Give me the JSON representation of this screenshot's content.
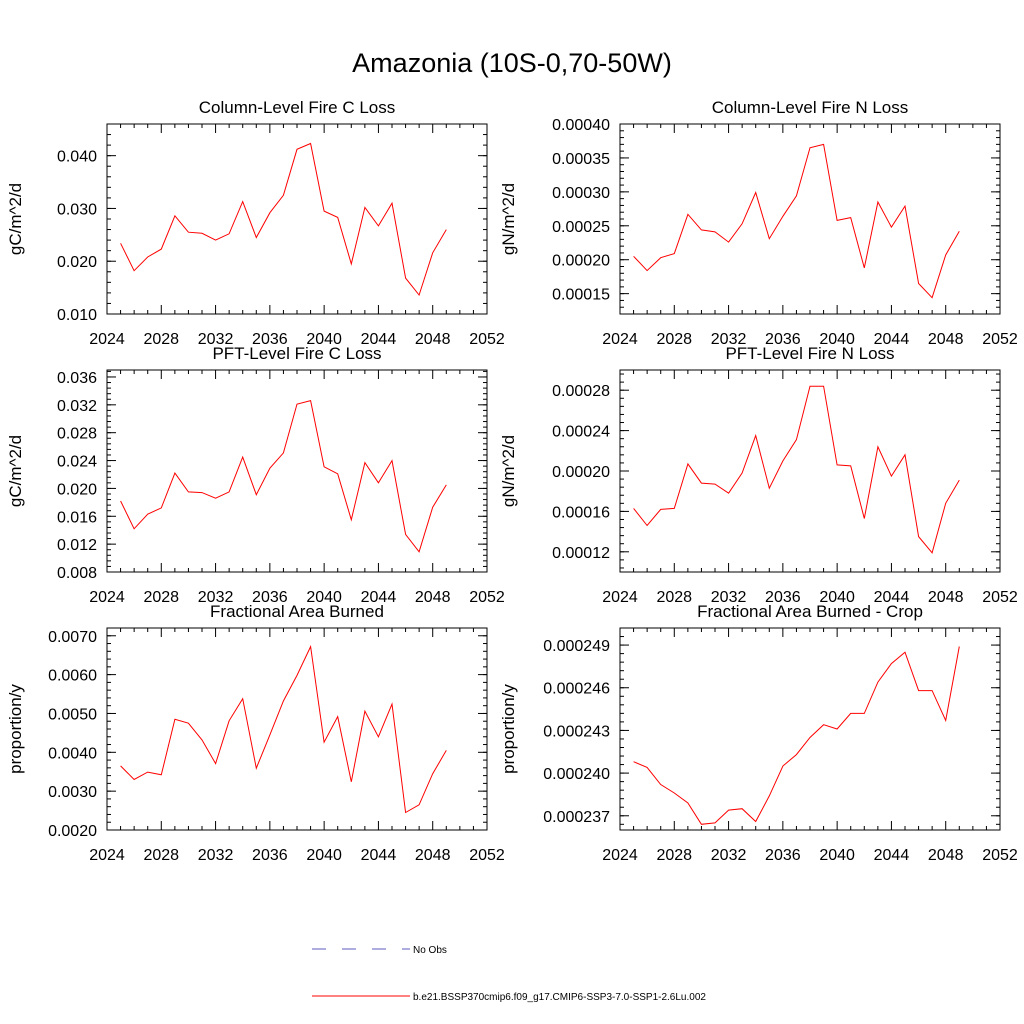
{
  "title": "Amazonia (10S-0,70-50W)",
  "legend": {
    "obs_label": "No Obs",
    "model_label": "b.e21.BSSP370cmip6.f09_g17.CMIP6-SSP3-7.0-SSP1-2.6Lu.002",
    "model_color": "#ff0000",
    "obs_color": "#5b5bbf"
  },
  "chart_data": [
    {
      "type": "line",
      "title": "Column-Level Fire C Loss",
      "ylabel": "gC/m^2/d",
      "xlim": [
        2024,
        2052
      ],
      "ylim": [
        0.01,
        0.046
      ],
      "xticks": [
        "2024",
        "2028",
        "2032",
        "2036",
        "2040",
        "2044",
        "2048",
        "2052"
      ],
      "yticks": [
        0.01,
        0.02,
        0.03,
        0.04
      ],
      "yticklabels": [
        "0.010",
        "0.020",
        "0.030",
        "0.040"
      ],
      "x": [
        2025,
        2026,
        2027,
        2028,
        2029,
        2030,
        2031,
        2032,
        2033,
        2034,
        2035,
        2036,
        2037,
        2038,
        2039,
        2040,
        2041,
        2042,
        2043,
        2044,
        2045,
        2046,
        2047,
        2048,
        2049
      ],
      "values": [
        0.0234,
        0.0182,
        0.0208,
        0.0223,
        0.0286,
        0.0255,
        0.0253,
        0.024,
        0.0252,
        0.0313,
        0.0245,
        0.0292,
        0.0325,
        0.0412,
        0.0423,
        0.0295,
        0.0283,
        0.0195,
        0.0302,
        0.0267,
        0.031,
        0.0168,
        0.0136,
        0.0216,
        0.026
      ]
    },
    {
      "type": "line",
      "title": "Column-Level Fire N Loss",
      "ylabel": "gN/m^2/d",
      "xlim": [
        2024,
        2052
      ],
      "ylim": [
        0.00012,
        0.0004
      ],
      "xticks": [
        "2024",
        "2028",
        "2032",
        "2036",
        "2040",
        "2044",
        "2048",
        "2052"
      ],
      "yticks": [
        0.00015,
        0.0002,
        0.00025,
        0.0003,
        0.00035,
        0.0004
      ],
      "yticklabels": [
        "0.00015",
        "0.00020",
        "0.00025",
        "0.00030",
        "0.00035",
        "0.00040"
      ],
      "x": [
        2025,
        2026,
        2027,
        2028,
        2029,
        2030,
        2031,
        2032,
        2033,
        2034,
        2035,
        2036,
        2037,
        2038,
        2039,
        2040,
        2041,
        2042,
        2043,
        2044,
        2045,
        2046,
        2047,
        2048,
        2049
      ],
      "values": [
        0.000205,
        0.000184,
        0.000203,
        0.000209,
        0.000267,
        0.000244,
        0.000241,
        0.000226,
        0.000253,
        0.000299,
        0.000231,
        0.000264,
        0.000294,
        0.000365,
        0.00037,
        0.000258,
        0.000262,
        0.000188,
        0.000285,
        0.000248,
        0.000279,
        0.000165,
        0.000144,
        0.000207,
        0.000242
      ]
    },
    {
      "type": "line",
      "title": "PFT-Level Fire C Loss",
      "ylabel": "gC/m^2/d",
      "xlim": [
        2024,
        2052
      ],
      "ylim": [
        0.008,
        0.037
      ],
      "xticks": [
        "2024",
        "2028",
        "2032",
        "2036",
        "2040",
        "2044",
        "2048",
        "2052"
      ],
      "yticks": [
        0.008,
        0.012,
        0.016,
        0.02,
        0.024,
        0.028,
        0.032,
        0.036
      ],
      "yticklabels": [
        "0.008",
        "0.012",
        "0.016",
        "0.020",
        "0.024",
        "0.028",
        "0.032",
        "0.036"
      ],
      "x": [
        2025,
        2026,
        2027,
        2028,
        2029,
        2030,
        2031,
        2032,
        2033,
        2034,
        2035,
        2036,
        2037,
        2038,
        2039,
        2040,
        2041,
        2042,
        2043,
        2044,
        2045,
        2046,
        2047,
        2048,
        2049
      ],
      "values": [
        0.0182,
        0.0142,
        0.0163,
        0.0172,
        0.0222,
        0.0195,
        0.0194,
        0.0186,
        0.0195,
        0.0245,
        0.0191,
        0.0229,
        0.0251,
        0.0321,
        0.0326,
        0.0231,
        0.0221,
        0.0155,
        0.0237,
        0.0208,
        0.024,
        0.0134,
        0.0109,
        0.0173,
        0.0205
      ]
    },
    {
      "type": "line",
      "title": "PFT-Level Fire N Loss",
      "ylabel": "gN/m^2/d",
      "xlim": [
        2024,
        2052
      ],
      "ylim": [
        0.0001,
        0.0003
      ],
      "xticks": [
        "2024",
        "2028",
        "2032",
        "2036",
        "2040",
        "2044",
        "2048",
        "2052"
      ],
      "yticks": [
        0.00012,
        0.00016,
        0.0002,
        0.00024,
        0.00028
      ],
      "yticklabels": [
        "0.00012",
        "0.00016",
        "0.00020",
        "0.00024",
        "0.00028"
      ],
      "x": [
        2025,
        2026,
        2027,
        2028,
        2029,
        2030,
        2031,
        2032,
        2033,
        2034,
        2035,
        2036,
        2037,
        2038,
        2039,
        2040,
        2041,
        2042,
        2043,
        2044,
        2045,
        2046,
        2047,
        2048,
        2049
      ],
      "values": [
        0.000163,
        0.000146,
        0.000162,
        0.000163,
        0.000207,
        0.000188,
        0.000187,
        0.000178,
        0.000198,
        0.000235,
        0.000183,
        0.00021,
        0.000231,
        0.000284,
        0.000284,
        0.000206,
        0.000205,
        0.000153,
        0.000224,
        0.000195,
        0.000216,
        0.000135,
        0.000119,
        0.000168,
        0.000191
      ]
    },
    {
      "type": "line",
      "title": "Fractional Area Burned",
      "ylabel": "proportion/y",
      "xlim": [
        2024,
        2052
      ],
      "ylim": [
        0.002,
        0.0072
      ],
      "xticks": [
        "2024",
        "2028",
        "2032",
        "2036",
        "2040",
        "2044",
        "2048",
        "2052"
      ],
      "yticks": [
        0.002,
        0.003,
        0.004,
        0.005,
        0.006,
        0.007
      ],
      "yticklabels": [
        "0.0020",
        "0.0030",
        "0.0040",
        "0.0050",
        "0.0060",
        "0.0070"
      ],
      "x": [
        2025,
        2026,
        2027,
        2028,
        2029,
        2030,
        2031,
        2032,
        2033,
        2034,
        2035,
        2036,
        2037,
        2038,
        2039,
        2040,
        2041,
        2042,
        2043,
        2044,
        2045,
        2046,
        2047,
        2048,
        2049
      ],
      "values": [
        0.00365,
        0.0033,
        0.00349,
        0.00342,
        0.00485,
        0.00475,
        0.00432,
        0.00371,
        0.00481,
        0.00538,
        0.00359,
        0.00445,
        0.00532,
        0.00598,
        0.00672,
        0.00426,
        0.00492,
        0.00324,
        0.00506,
        0.0044,
        0.00524,
        0.00245,
        0.00265,
        0.00345,
        0.00405
      ]
    },
    {
      "type": "line",
      "title": "Fractional Area Burned - Crop",
      "ylabel": "proportion/y",
      "xlim": [
        2024,
        2052
      ],
      "ylim": [
        0.000236,
        0.0002502
      ],
      "xticks": [
        "2024",
        "2028",
        "2032",
        "2036",
        "2040",
        "2044",
        "2048",
        "2052"
      ],
      "yticks": [
        0.000237,
        0.00024,
        0.000243,
        0.000246,
        0.000249
      ],
      "yticklabels": [
        "0.000237",
        "0.000240",
        "0.000243",
        "0.000246",
        "0.000249"
      ],
      "x": [
        2025,
        2026,
        2027,
        2028,
        2029,
        2030,
        2031,
        2032,
        2033,
        2034,
        2035,
        2036,
        2037,
        2038,
        2039,
        2040,
        2041,
        2042,
        2043,
        2044,
        2045,
        2046,
        2047,
        2048,
        2049
      ],
      "values": [
        0.0002408,
        0.0002404,
        0.0002392,
        0.0002386,
        0.0002379,
        0.0002364,
        0.0002365,
        0.0002374,
        0.0002375,
        0.0002366,
        0.0002384,
        0.0002405,
        0.0002413,
        0.0002425,
        0.0002434,
        0.0002431,
        0.0002442,
        0.0002442,
        0.0002464,
        0.0002477,
        0.0002485,
        0.0002458,
        0.0002458,
        0.0002437,
        0.0002489
      ]
    }
  ]
}
